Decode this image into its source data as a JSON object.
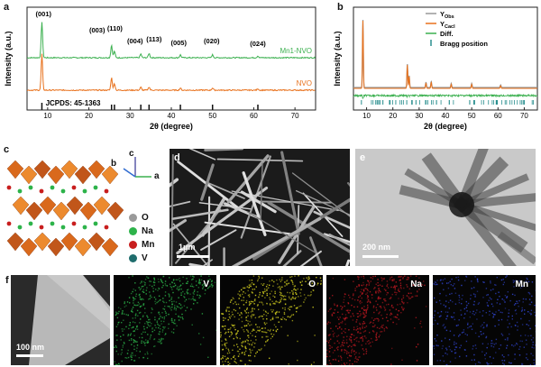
{
  "panel_labels": {
    "a": "a",
    "b": "b",
    "c": "c",
    "d": "d",
    "e": "e",
    "f": "f"
  },
  "chart_data": [
    {
      "type": "line",
      "xlabel": "2θ (degree)",
      "ylabel": "Intensity (a.u.)",
      "xlim": [
        5,
        75
      ],
      "xticks": [
        10,
        20,
        30,
        40,
        50,
        60,
        70
      ],
      "series": [
        {
          "name": "Mn1-NVO",
          "color": "#3bb04f",
          "peaks": [
            [
              8.6,
              1.0
            ],
            [
              25.5,
              0.35
            ],
            [
              26.2,
              0.18
            ],
            [
              32.6,
              0.1
            ],
            [
              34.6,
              0.12
            ],
            [
              42.2,
              0.08
            ],
            [
              50.0,
              0.08
            ],
            [
              61.0,
              0.05
            ]
          ]
        },
        {
          "name": "NVO",
          "color": "#e8711c",
          "peaks": [
            [
              8.6,
              1.0
            ],
            [
              25.5,
              0.35
            ],
            [
              26.2,
              0.18
            ],
            [
              32.6,
              0.08
            ],
            [
              34.6,
              0.09
            ],
            [
              42.2,
              0.06
            ],
            [
              50.0,
              0.06
            ],
            [
              61.0,
              0.04
            ]
          ]
        }
      ],
      "peak_labels": [
        {
          "text": "(001)",
          "x": 9
        },
        {
          "text": "(003)",
          "x": 22
        },
        {
          "text": "(110)",
          "x": 26.3
        },
        {
          "text": "(004)",
          "x": 31.2
        },
        {
          "text": "(113)",
          "x": 35.8
        },
        {
          "text": "(005)",
          "x": 41.8
        },
        {
          "text": "(020)",
          "x": 49.8
        },
        {
          "text": "(024)",
          "x": 61
        }
      ],
      "reference_label": "JCPDS: 45-1363",
      "reference_lines": [
        8.6,
        25.5,
        26.2,
        32.6,
        34.6,
        42.2,
        50.0,
        61.0
      ]
    },
    {
      "type": "line",
      "xlabel": "2θ (degree)",
      "ylabel": "Intensity (a.u.)",
      "xlim": [
        5,
        75
      ],
      "xticks": [
        10,
        20,
        30,
        40,
        50,
        60,
        70
      ],
      "legend": [
        {
          "label": "Y",
          "sub": "Obs",
          "color": "#999999"
        },
        {
          "label": "Y",
          "sub": "Cacl",
          "color": "#e8711c"
        },
        {
          "label": "Diff.",
          "sub": "",
          "color": "#3bb04f"
        },
        {
          "label": "Bragg position",
          "sub": "",
          "color": "#2a8f8f"
        }
      ]
    }
  ],
  "panel_c": {
    "axes": {
      "a": "a",
      "b": "b",
      "c": "c"
    },
    "legend": [
      {
        "label": "O",
        "color": "#9a9a9a"
      },
      {
        "label": "Na",
        "color": "#2db34a"
      },
      {
        "label": "Mn",
        "color": "#c81e1e"
      },
      {
        "label": "V",
        "color": "#1f6d6d"
      }
    ]
  },
  "panel_d": {
    "scale": "1μm"
  },
  "panel_e": {
    "scale": "200 nm"
  },
  "panel_f": {
    "scale": "100 nm",
    "maps": [
      {
        "label": "V",
        "color": "#2aa845"
      },
      {
        "label": "O",
        "color": "#c9c51e"
      },
      {
        "label": "Na",
        "color": "#b0171f"
      },
      {
        "label": "Mn",
        "color": "#2c3fbf"
      }
    ]
  }
}
